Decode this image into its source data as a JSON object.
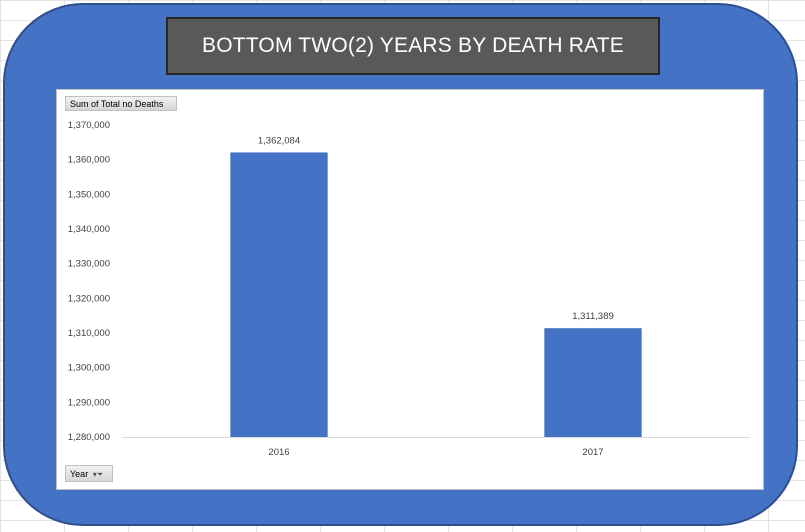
{
  "title": "BOTTOM TWO(2) YEARS BY DEATH RATE",
  "field_buttons": {
    "measure_label": "Sum of Total no Deaths",
    "axis_label": "Year"
  },
  "colors": {
    "frame": "#4472c4",
    "bar": "#4472c4",
    "title_bg": "#595959"
  },
  "chart_data": {
    "type": "bar",
    "categories": [
      "2016",
      "2017"
    ],
    "values": [
      1362084,
      1311389
    ],
    "data_labels": [
      "1,362,084",
      "1,311,389"
    ],
    "ylim": [
      1280000,
      1370000
    ],
    "yticks": [
      1280000,
      1290000,
      1300000,
      1310000,
      1320000,
      1330000,
      1340000,
      1350000,
      1360000,
      1370000
    ],
    "ytick_labels": [
      "1,280,000",
      "1,290,000",
      "1,300,000",
      "1,310,000",
      "1,320,000",
      "1,330,000",
      "1,340,000",
      "1,350,000",
      "1,360,000",
      "1,370,000"
    ],
    "grid": false,
    "legend": "none"
  }
}
